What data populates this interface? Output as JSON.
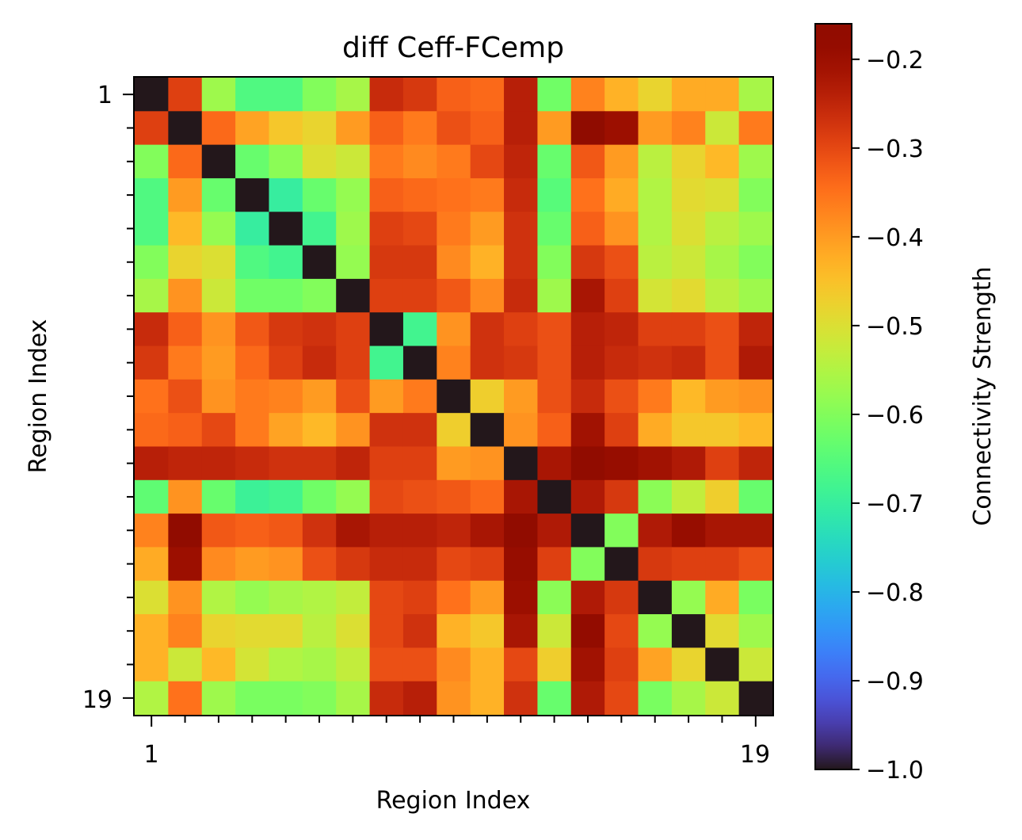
{
  "chart_data": {
    "type": "heatmap",
    "title": "diff Ceff-FCemp",
    "xlabel": "Region Index",
    "ylabel": "Region Index",
    "x_tick_labels": [
      "1",
      "19"
    ],
    "y_tick_labels": [
      "1",
      "19"
    ],
    "colorbar": {
      "label": "Connectivity Strength",
      "colormap": "turbo",
      "vmin": -1.0,
      "vmax": -0.16,
      "ticks": [
        -1.0,
        -0.9,
        -0.8,
        -0.7,
        -0.6,
        -0.5,
        -0.4,
        -0.3,
        -0.2
      ],
      "tick_labels": [
        "−1.0",
        "−0.9",
        "−0.8",
        "−0.7",
        "−0.6",
        "−0.5",
        "−0.4",
        "−0.3",
        "−0.2"
      ]
    },
    "rows": 19,
    "cols": 19,
    "values": [
      [
        -1.0,
        -0.29,
        -0.57,
        -0.66,
        -0.66,
        -0.6,
        -0.56,
        -0.26,
        -0.28,
        -0.33,
        -0.34,
        -0.24,
        -0.62,
        -0.37,
        -0.43,
        -0.48,
        -0.42,
        -0.42,
        -0.56
      ],
      [
        -0.29,
        -1.0,
        -0.34,
        -0.41,
        -0.46,
        -0.48,
        -0.4,
        -0.33,
        -0.36,
        -0.31,
        -0.33,
        -0.24,
        -0.4,
        -0.16,
        -0.2,
        -0.4,
        -0.37,
        -0.52,
        -0.36
      ],
      [
        -0.6,
        -0.34,
        -1.0,
        -0.63,
        -0.59,
        -0.5,
        -0.52,
        -0.36,
        -0.38,
        -0.36,
        -0.3,
        -0.25,
        -0.63,
        -0.32,
        -0.4,
        -0.54,
        -0.48,
        -0.44,
        -0.57
      ],
      [
        -0.66,
        -0.4,
        -0.63,
        -1.0,
        -0.7,
        -0.63,
        -0.58,
        -0.33,
        -0.34,
        -0.35,
        -0.36,
        -0.26,
        -0.65,
        -0.35,
        -0.42,
        -0.55,
        -0.49,
        -0.5,
        -0.6
      ],
      [
        -0.66,
        -0.44,
        -0.58,
        -0.7,
        -1.0,
        -0.68,
        -0.57,
        -0.29,
        -0.3,
        -0.36,
        -0.4,
        -0.27,
        -0.63,
        -0.33,
        -0.39,
        -0.55,
        -0.5,
        -0.54,
        -0.57
      ],
      [
        -0.6,
        -0.48,
        -0.5,
        -0.66,
        -0.68,
        -1.0,
        -0.58,
        -0.28,
        -0.28,
        -0.38,
        -0.43,
        -0.27,
        -0.6,
        -0.28,
        -0.31,
        -0.54,
        -0.52,
        -0.56,
        -0.6
      ],
      [
        -0.56,
        -0.39,
        -0.52,
        -0.62,
        -0.62,
        -0.6,
        -1.0,
        -0.29,
        -0.29,
        -0.32,
        -0.38,
        -0.26,
        -0.57,
        -0.22,
        -0.29,
        -0.51,
        -0.49,
        -0.54,
        -0.57
      ],
      [
        -0.26,
        -0.33,
        -0.39,
        -0.32,
        -0.28,
        -0.27,
        -0.29,
        -1.0,
        -0.68,
        -0.39,
        -0.27,
        -0.29,
        -0.31,
        -0.24,
        -0.25,
        -0.29,
        -0.29,
        -0.31,
        -0.25
      ],
      [
        -0.28,
        -0.36,
        -0.4,
        -0.34,
        -0.29,
        -0.26,
        -0.29,
        -0.68,
        -1.0,
        -0.37,
        -0.27,
        -0.28,
        -0.31,
        -0.24,
        -0.26,
        -0.27,
        -0.26,
        -0.31,
        -0.23
      ],
      [
        -0.35,
        -0.31,
        -0.39,
        -0.36,
        -0.37,
        -0.4,
        -0.31,
        -0.4,
        -0.36,
        -1.0,
        -0.47,
        -0.4,
        -0.31,
        -0.26,
        -0.31,
        -0.36,
        -0.44,
        -0.4,
        -0.39
      ],
      [
        -0.34,
        -0.33,
        -0.3,
        -0.36,
        -0.41,
        -0.44,
        -0.39,
        -0.27,
        -0.27,
        -0.47,
        -1.0,
        -0.39,
        -0.33,
        -0.21,
        -0.29,
        -0.42,
        -0.46,
        -0.46,
        -0.44
      ],
      [
        -0.24,
        -0.25,
        -0.25,
        -0.26,
        -0.27,
        -0.27,
        -0.25,
        -0.29,
        -0.29,
        -0.4,
        -0.39,
        -1.0,
        -0.22,
        -0.17,
        -0.19,
        -0.21,
        -0.23,
        -0.29,
        -0.25
      ],
      [
        -0.64,
        -0.39,
        -0.63,
        -0.69,
        -0.68,
        -0.62,
        -0.58,
        -0.3,
        -0.31,
        -0.32,
        -0.34,
        -0.22,
        -1.0,
        -0.23,
        -0.28,
        -0.59,
        -0.53,
        -0.47,
        -0.63
      ],
      [
        -0.37,
        -0.17,
        -0.32,
        -0.33,
        -0.32,
        -0.27,
        -0.22,
        -0.24,
        -0.24,
        -0.25,
        -0.22,
        -0.17,
        -0.23,
        -1.0,
        -0.6,
        -0.23,
        -0.19,
        -0.22,
        -0.22
      ],
      [
        -0.42,
        -0.2,
        -0.38,
        -0.4,
        -0.39,
        -0.31,
        -0.28,
        -0.26,
        -0.26,
        -0.3,
        -0.29,
        -0.19,
        -0.29,
        -0.6,
        -1.0,
        -0.28,
        -0.29,
        -0.29,
        -0.31
      ],
      [
        -0.5,
        -0.39,
        -0.55,
        -0.58,
        -0.56,
        -0.55,
        -0.53,
        -0.3,
        -0.29,
        -0.35,
        -0.4,
        -0.2,
        -0.59,
        -0.23,
        -0.28,
        -1.0,
        -0.58,
        -0.42,
        -0.61
      ],
      [
        -0.43,
        -0.37,
        -0.48,
        -0.49,
        -0.49,
        -0.54,
        -0.5,
        -0.3,
        -0.27,
        -0.43,
        -0.46,
        -0.22,
        -0.52,
        -0.18,
        -0.3,
        -0.58,
        -1.0,
        -0.49,
        -0.57
      ],
      [
        -0.43,
        -0.52,
        -0.44,
        -0.51,
        -0.55,
        -0.56,
        -0.53,
        -0.31,
        -0.31,
        -0.38,
        -0.43,
        -0.3,
        -0.47,
        -0.21,
        -0.29,
        -0.41,
        -0.48,
        -1.0,
        -0.52
      ],
      [
        -0.55,
        -0.35,
        -0.57,
        -0.61,
        -0.61,
        -0.6,
        -0.56,
        -0.26,
        -0.24,
        -0.39,
        -0.43,
        -0.27,
        -0.63,
        -0.23,
        -0.3,
        -0.61,
        -0.56,
        -0.52,
        -1.0
      ]
    ]
  }
}
